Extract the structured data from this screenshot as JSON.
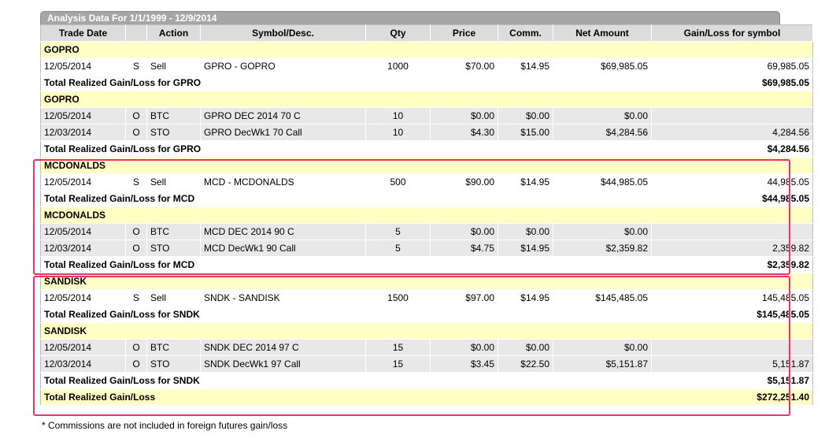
{
  "report": {
    "title": "Analysis Data For 1/1/1999 - 12/9/2014",
    "columns": [
      "Trade Date",
      "",
      "Action",
      "Symbol/Desc.",
      "Qty",
      "Price",
      "Comm.",
      "Net Amount",
      "Gain/Loss for symbol"
    ],
    "footnote": "* Commissions are not included in foreign futures gain/loss"
  },
  "rows": [
    {
      "kind": "group",
      "label": "GOPRO"
    },
    {
      "kind": "trade",
      "shade": "w",
      "date": "12/05/2014",
      "type": "S",
      "action": "Sell",
      "symbol": "GPRO - GOPRO",
      "qty": "1000",
      "price": "$70.00",
      "comm": "$14.95",
      "net": "$69,985.05",
      "gain": "69,985.05"
    },
    {
      "kind": "total",
      "label": "Total Realized Gain/Loss for GPRO",
      "value": "$69,985.05"
    },
    {
      "kind": "group",
      "label": "GOPRO"
    },
    {
      "kind": "trade",
      "shade": "g",
      "date": "12/05/2014",
      "type": "O",
      "action": "BTC",
      "symbol": "GPRO DEC 2014 70 C",
      "qty": "10",
      "price": "$0.00",
      "comm": "$0.00",
      "net": "$0.00",
      "gain": ""
    },
    {
      "kind": "trade",
      "shade": "g",
      "date": "12/03/2014",
      "type": "O",
      "action": "STO",
      "symbol": "GPRO DecWk1 70 Call",
      "qty": "10",
      "price": "$4.30",
      "comm": "$15.00",
      "net": "$4,284.56",
      "gain": "4,284.56"
    },
    {
      "kind": "total",
      "label": "Total Realized Gain/Loss for GPRO",
      "value": "$4,284.56"
    },
    {
      "kind": "group",
      "label": "MCDONALDS"
    },
    {
      "kind": "trade",
      "shade": "w",
      "date": "12/05/2014",
      "type": "S",
      "action": "Sell",
      "symbol": "MCD - MCDONALDS",
      "qty": "500",
      "price": "$90.00",
      "comm": "$14.95",
      "net": "$44,985.05",
      "gain": "44,985.05"
    },
    {
      "kind": "total",
      "label": "Total Realized Gain/Loss for MCD",
      "value": "$44,985.05"
    },
    {
      "kind": "group",
      "label": "MCDONALDS"
    },
    {
      "kind": "trade",
      "shade": "g",
      "date": "12/05/2014",
      "type": "O",
      "action": "BTC",
      "symbol": "MCD DEC 2014 90 C",
      "qty": "5",
      "price": "$0.00",
      "comm": "$0.00",
      "net": "$0.00",
      "gain": ""
    },
    {
      "kind": "trade",
      "shade": "g",
      "date": "12/03/2014",
      "type": "O",
      "action": "STO",
      "symbol": "MCD DecWk1 90 Call",
      "qty": "5",
      "price": "$4.75",
      "comm": "$14.95",
      "net": "$2,359.82",
      "gain": "2,359.82"
    },
    {
      "kind": "total",
      "label": "Total Realized Gain/Loss for MCD",
      "value": "$2,359.82"
    },
    {
      "kind": "group",
      "label": "SANDISK"
    },
    {
      "kind": "trade",
      "shade": "w",
      "date": "12/05/2014",
      "type": "S",
      "action": "Sell",
      "symbol": "SNDK - SANDISK",
      "qty": "1500",
      "price": "$97.00",
      "comm": "$14.95",
      "net": "$145,485.05",
      "gain": "145,485.05"
    },
    {
      "kind": "total",
      "label": "Total Realized Gain/Loss for SNDK",
      "value": "$145,485.05"
    },
    {
      "kind": "group",
      "label": "SANDISK"
    },
    {
      "kind": "trade",
      "shade": "g",
      "date": "12/05/2014",
      "type": "O",
      "action": "BTC",
      "symbol": "SNDK DEC 2014 97 C",
      "qty": "15",
      "price": "$0.00",
      "comm": "$0.00",
      "net": "$0.00",
      "gain": ""
    },
    {
      "kind": "trade",
      "shade": "g",
      "date": "12/03/2014",
      "type": "O",
      "action": "STO",
      "symbol": "SNDK DecWk1 97 Call",
      "qty": "15",
      "price": "$3.45",
      "comm": "$22.50",
      "net": "$5,151.87",
      "gain": "5,151.87"
    },
    {
      "kind": "total",
      "label": "Total Realized Gain/Loss for SNDK",
      "value": "$5,151.87"
    },
    {
      "kind": "grand",
      "label": "Total Realized Gain/Loss",
      "value": "$272,251.40"
    }
  ],
  "colors": {
    "highlight": "#e8336a",
    "group_bg": "#ffffc6",
    "header_bg": "#dcdcdc",
    "title_bg": "#a6a6a6"
  }
}
